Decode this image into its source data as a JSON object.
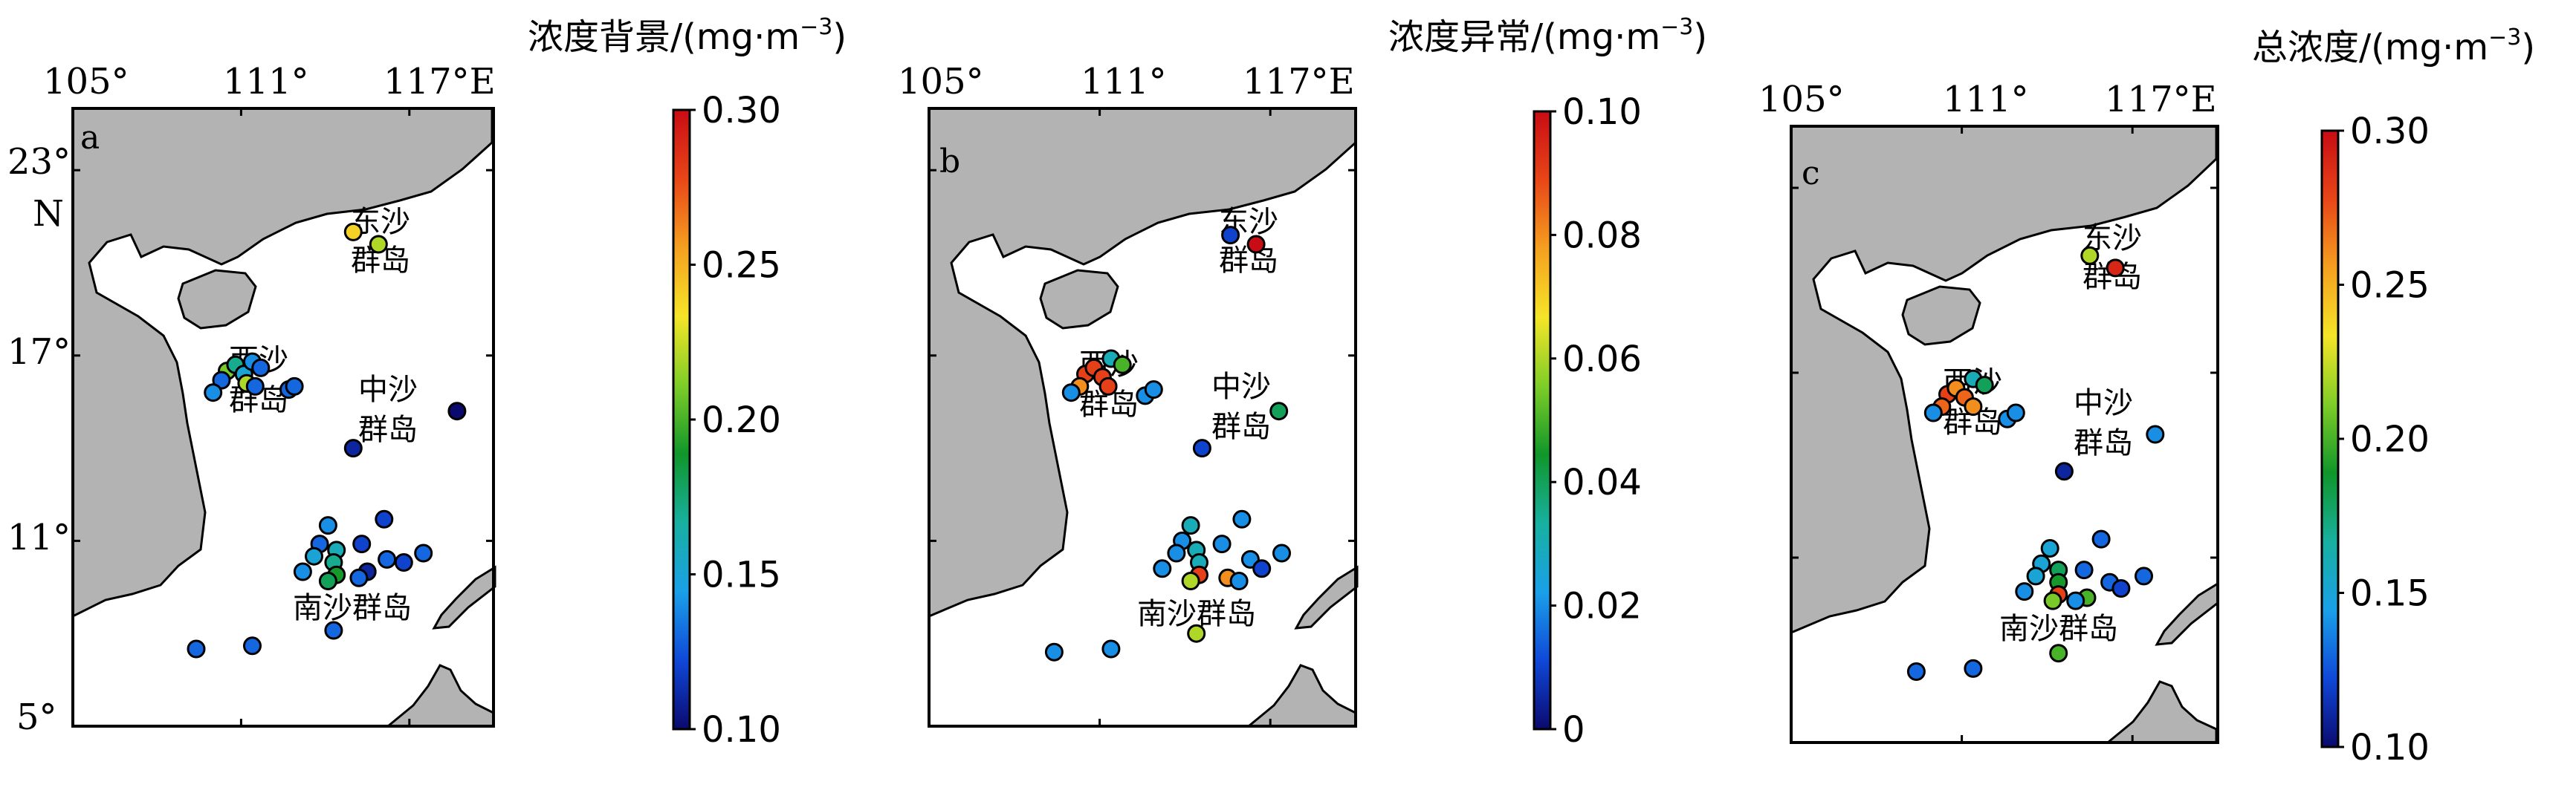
{
  "colors": {
    "land": "#b3b3b3",
    "stops": [
      "#0a0a6e",
      "#1048d8",
      "#1aa0e8",
      "#18b0a0",
      "#10962a",
      "#7fcd28",
      "#f5e528",
      "#f5a020",
      "#e84618",
      "#c80c14"
    ]
  },
  "map_panels": [
    {
      "letter": "a",
      "colorbar": {
        "title": "浓度背景/(mg·m",
        "sup": "−3",
        "close": ")",
        "ticks": [
          "0.30",
          "0.25",
          "0.20",
          "0.15",
          "0.10"
        ],
        "range": [
          0.1,
          0.3
        ]
      },
      "axis": {
        "lon_ticks": [
          "105°",
          "111°",
          "117°E"
        ],
        "lat_ticks": [
          "23°",
          "17°",
          "11°",
          "5°"
        ],
        "lat_unit": "N"
      },
      "labels": {
        "dongsha_1": "东沙",
        "dongsha_2": "群岛",
        "xisha_1": "西沙",
        "xisha_2": "群岛",
        "zhongsha_1": "中沙",
        "zhongsha_2": "群岛",
        "nansha": "南沙群岛"
      },
      "sites": [
        {
          "lon": 115.0,
          "lat": 21.0,
          "v": 0.24
        },
        {
          "lon": 115.9,
          "lat": 20.6,
          "v": 0.22
        },
        {
          "lon": 110.5,
          "lat": 16.5,
          "v": 0.21
        },
        {
          "lon": 110.8,
          "lat": 16.7,
          "v": 0.17
        },
        {
          "lon": 111.1,
          "lat": 16.4,
          "v": 0.15
        },
        {
          "lon": 111.4,
          "lat": 16.8,
          "v": 0.14
        },
        {
          "lon": 111.7,
          "lat": 16.6,
          "v": 0.13
        },
        {
          "lon": 110.3,
          "lat": 16.2,
          "v": 0.13
        },
        {
          "lon": 111.2,
          "lat": 16.1,
          "v": 0.22
        },
        {
          "lon": 110.0,
          "lat": 15.8,
          "v": 0.14
        },
        {
          "lon": 111.5,
          "lat": 16.0,
          "v": 0.13
        },
        {
          "lon": 112.7,
          "lat": 15.9,
          "v": 0.13
        },
        {
          "lon": 112.9,
          "lat": 16.0,
          "v": 0.13
        },
        {
          "lon": 118.7,
          "lat": 15.2,
          "v": 0.1
        },
        {
          "lon": 115.0,
          "lat": 14.0,
          "v": 0.11
        },
        {
          "lon": 113.8,
          "lat": 10.9,
          "v": 0.13
        },
        {
          "lon": 114.1,
          "lat": 11.5,
          "v": 0.14
        },
        {
          "lon": 114.4,
          "lat": 10.7,
          "v": 0.16
        },
        {
          "lon": 114.3,
          "lat": 10.3,
          "v": 0.17
        },
        {
          "lon": 114.4,
          "lat": 9.9,
          "v": 0.19
        },
        {
          "lon": 114.1,
          "lat": 9.7,
          "v": 0.18
        },
        {
          "lon": 113.6,
          "lat": 10.5,
          "v": 0.15
        },
        {
          "lon": 113.2,
          "lat": 10.0,
          "v": 0.14
        },
        {
          "lon": 115.3,
          "lat": 10.9,
          "v": 0.12
        },
        {
          "lon": 115.5,
          "lat": 10.0,
          "v": 0.11
        },
        {
          "lon": 115.2,
          "lat": 9.8,
          "v": 0.13
        },
        {
          "lon": 116.1,
          "lat": 11.7,
          "v": 0.12
        },
        {
          "lon": 116.2,
          "lat": 10.4,
          "v": 0.13
        },
        {
          "lon": 116.8,
          "lat": 10.3,
          "v": 0.12
        },
        {
          "lon": 117.5,
          "lat": 10.6,
          "v": 0.13
        },
        {
          "lon": 114.3,
          "lat": 8.1,
          "v": 0.13
        },
        {
          "lon": 109.4,
          "lat": 7.5,
          "v": 0.13
        },
        {
          "lon": 111.4,
          "lat": 7.6,
          "v": 0.13
        }
      ]
    },
    {
      "letter": "b",
      "colorbar": {
        "title": "浓度异常/(mg·m",
        "sup": "−3",
        "close": ")",
        "ticks": [
          "0.10",
          "0.08",
          "0.06",
          "0.04",
          "0.02",
          "0"
        ],
        "range": [
          0,
          0.1
        ]
      },
      "axis": {
        "lon_ticks": [
          "105°",
          "111°",
          "117°E"
        ],
        "lat_ticks": [],
        "lat_unit": ""
      },
      "labels": {
        "dongsha_1": "东沙",
        "dongsha_2": "群岛",
        "xisha_1": "西沙",
        "xisha_2": "群岛",
        "zhongsha_1": "中沙",
        "zhongsha_2": "群岛",
        "nansha": "南沙群岛"
      },
      "sites": [
        {
          "lon": 115.6,
          "lat": 20.9,
          "v": 0.01
        },
        {
          "lon": 116.5,
          "lat": 20.6,
          "v": 0.1
        },
        {
          "lon": 110.5,
          "lat": 16.4,
          "v": 0.09
        },
        {
          "lon": 110.8,
          "lat": 16.6,
          "v": 0.09
        },
        {
          "lon": 111.1,
          "lat": 16.3,
          "v": 0.09
        },
        {
          "lon": 111.4,
          "lat": 16.9,
          "v": 0.03
        },
        {
          "lon": 111.8,
          "lat": 16.7,
          "v": 0.05
        },
        {
          "lon": 110.3,
          "lat": 16.0,
          "v": 0.08
        },
        {
          "lon": 111.3,
          "lat": 16.0,
          "v": 0.09
        },
        {
          "lon": 110.0,
          "lat": 15.8,
          "v": 0.02
        },
        {
          "lon": 112.6,
          "lat": 15.7,
          "v": 0.02
        },
        {
          "lon": 112.9,
          "lat": 15.9,
          "v": 0.02
        },
        {
          "lon": 117.3,
          "lat": 15.2,
          "v": 0.04
        },
        {
          "lon": 114.6,
          "lat": 14.0,
          "v": 0.01
        },
        {
          "lon": 113.9,
          "lat": 11.0,
          "v": 0.02
        },
        {
          "lon": 114.2,
          "lat": 11.5,
          "v": 0.03
        },
        {
          "lon": 114.4,
          "lat": 10.7,
          "v": 0.03
        },
        {
          "lon": 114.5,
          "lat": 10.3,
          "v": 0.03
        },
        {
          "lon": 114.5,
          "lat": 9.9,
          "v": 0.09
        },
        {
          "lon": 114.2,
          "lat": 9.7,
          "v": 0.06
        },
        {
          "lon": 113.7,
          "lat": 10.6,
          "v": 0.02
        },
        {
          "lon": 113.2,
          "lat": 10.1,
          "v": 0.02
        },
        {
          "lon": 115.3,
          "lat": 10.9,
          "v": 0.02
        },
        {
          "lon": 115.5,
          "lat": 9.8,
          "v": 0.08
        },
        {
          "lon": 115.9,
          "lat": 9.7,
          "v": 0.02
        },
        {
          "lon": 116.0,
          "lat": 11.7,
          "v": 0.02
        },
        {
          "lon": 116.3,
          "lat": 10.4,
          "v": 0.02
        },
        {
          "lon": 116.7,
          "lat": 10.1,
          "v": 0.01
        },
        {
          "lon": 117.4,
          "lat": 10.6,
          "v": 0.02
        },
        {
          "lon": 114.4,
          "lat": 8.0,
          "v": 0.06
        },
        {
          "lon": 109.4,
          "lat": 7.4,
          "v": 0.02
        },
        {
          "lon": 111.4,
          "lat": 7.5,
          "v": 0.02
        }
      ]
    },
    {
      "letter": "c",
      "colorbar": {
        "title": "总浓度/(mg·m",
        "sup": "−3",
        "close": ")",
        "ticks": [
          "0.30",
          "0.25",
          "0.20",
          "0.15",
          "0.10"
        ],
        "range": [
          0.1,
          0.3
        ]
      },
      "axis": {
        "lon_ticks": [
          "105°",
          "111°",
          "117°E"
        ],
        "lat_ticks": [],
        "lat_unit": ""
      },
      "labels": {
        "dongsha_1": "东沙",
        "dongsha_2": "群岛",
        "xisha_1": "西沙",
        "xisha_2": "群岛",
        "zhongsha_1": "中沙",
        "zhongsha_2": "群岛",
        "nansha": "南沙群岛"
      },
      "sites": [
        {
          "lon": 115.5,
          "lat": 20.8,
          "v": 0.22
        },
        {
          "lon": 116.4,
          "lat": 20.4,
          "v": 0.29
        },
        {
          "lon": 110.5,
          "lat": 16.3,
          "v": 0.28
        },
        {
          "lon": 110.8,
          "lat": 16.5,
          "v": 0.26
        },
        {
          "lon": 111.1,
          "lat": 16.2,
          "v": 0.27
        },
        {
          "lon": 111.4,
          "lat": 16.8,
          "v": 0.16
        },
        {
          "lon": 111.8,
          "lat": 16.6,
          "v": 0.18
        },
        {
          "lon": 110.3,
          "lat": 15.9,
          "v": 0.27
        },
        {
          "lon": 111.4,
          "lat": 15.9,
          "v": 0.26
        },
        {
          "lon": 110.0,
          "lat": 15.7,
          "v": 0.14
        },
        {
          "lon": 112.6,
          "lat": 15.5,
          "v": 0.14
        },
        {
          "lon": 112.9,
          "lat": 15.7,
          "v": 0.14
        },
        {
          "lon": 117.8,
          "lat": 15.0,
          "v": 0.14
        },
        {
          "lon": 114.6,
          "lat": 13.8,
          "v": 0.11
        },
        {
          "lon": 113.8,
          "lat": 10.8,
          "v": 0.15
        },
        {
          "lon": 114.1,
          "lat": 11.3,
          "v": 0.15
        },
        {
          "lon": 114.4,
          "lat": 10.6,
          "v": 0.18
        },
        {
          "lon": 114.4,
          "lat": 10.2,
          "v": 0.19
        },
        {
          "lon": 114.4,
          "lat": 9.8,
          "v": 0.28
        },
        {
          "lon": 114.2,
          "lat": 9.6,
          "v": 0.21
        },
        {
          "lon": 113.6,
          "lat": 10.4,
          "v": 0.15
        },
        {
          "lon": 113.2,
          "lat": 9.9,
          "v": 0.14
        },
        {
          "lon": 115.3,
          "lat": 10.6,
          "v": 0.13
        },
        {
          "lon": 115.4,
          "lat": 9.7,
          "v": 0.2
        },
        {
          "lon": 115.0,
          "lat": 9.6,
          "v": 0.14
        },
        {
          "lon": 115.9,
          "lat": 11.6,
          "v": 0.13
        },
        {
          "lon": 116.2,
          "lat": 10.2,
          "v": 0.13
        },
        {
          "lon": 116.6,
          "lat": 10.0,
          "v": 0.12
        },
        {
          "lon": 117.4,
          "lat": 10.4,
          "v": 0.13
        },
        {
          "lon": 114.4,
          "lat": 7.9,
          "v": 0.2
        },
        {
          "lon": 109.4,
          "lat": 7.3,
          "v": 0.13
        },
        {
          "lon": 111.4,
          "lat": 7.4,
          "v": 0.13
        }
      ]
    }
  ]
}
